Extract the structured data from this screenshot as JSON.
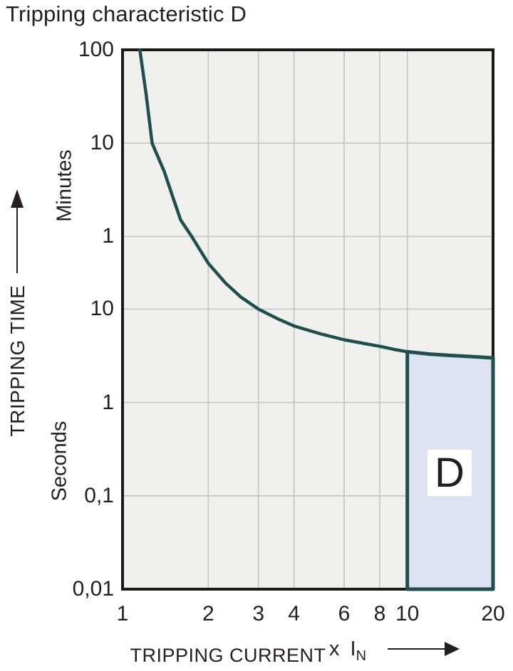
{
  "title": "Tripping characteristic D",
  "labels": {
    "y_axis": "TRIPPING TIME",
    "unit_top": "Minutes",
    "unit_bottom": "Seconds",
    "x_axis": "TRIPPING CURRENT",
    "x_axis_mult": "x",
    "x_axis_symbol": "I",
    "x_axis_symbol_sub": "N",
    "region": "D"
  },
  "colors": {
    "curve": "#1f4e4d",
    "region_fill": "#dde3f2",
    "region_stroke": "#1f4e4d",
    "plot_background": "#f0f0ee",
    "gridline": "#c3c4c6",
    "frame": "#1a1a1a",
    "text": "#231f20"
  },
  "chart_data": {
    "type": "line",
    "title": "Tripping characteristic D",
    "xlabel": "TRIPPING CURRENT (x IN)",
    "ylabel": "TRIPPING TIME",
    "x_scale": "log",
    "y_scale": "log",
    "x_range": [
      1,
      20
    ],
    "y_range_seconds": [
      0.01,
      6000
    ],
    "grid": true,
    "legend": "none",
    "x_ticks": [
      {
        "label": "1",
        "value": 1
      },
      {
        "label": "2",
        "value": 2
      },
      {
        "label": "3",
        "value": 3
      },
      {
        "label": "4",
        "value": 4
      },
      {
        "label": "6",
        "value": 6
      },
      {
        "label": "8",
        "value": 8
      },
      {
        "label": "10",
        "value": 10
      },
      {
        "label": "20",
        "value": 20
      }
    ],
    "y_ticks": [
      {
        "label": "100",
        "unit": "minutes",
        "seconds": 6000
      },
      {
        "label": "10",
        "unit": "minutes",
        "seconds": 600
      },
      {
        "label": "1",
        "unit": "minutes",
        "seconds": 60
      },
      {
        "label": "10",
        "unit": "seconds",
        "seconds": 10
      },
      {
        "label": "1",
        "unit": "seconds",
        "seconds": 1
      },
      {
        "label": "0,1",
        "unit": "seconds",
        "seconds": 0.1
      },
      {
        "label": "0,01",
        "unit": "seconds",
        "seconds": 0.01
      }
    ],
    "series": [
      {
        "name": "Tripping characteristic D (thermal release curve)",
        "points_format": [
          "current_multiple_of_In",
          "tripping_time_seconds"
        ],
        "points": [
          [
            1.15,
            6000
          ],
          [
            1.21,
            2000
          ],
          [
            1.27,
            600
          ],
          [
            1.4,
            300
          ],
          [
            1.5,
            160
          ],
          [
            1.6,
            90
          ],
          [
            1.75,
            60
          ],
          [
            2.0,
            31
          ],
          [
            2.3,
            19
          ],
          [
            2.6,
            13.5
          ],
          [
            3.0,
            10
          ],
          [
            3.5,
            7.9
          ],
          [
            4.0,
            6.6
          ],
          [
            5.0,
            5.4
          ],
          [
            6.0,
            4.7
          ],
          [
            7.0,
            4.3
          ],
          [
            8.0,
            4.0
          ],
          [
            9.0,
            3.7
          ],
          [
            10.0,
            3.5
          ],
          [
            12.0,
            3.3
          ],
          [
            14.0,
            3.2
          ],
          [
            17.0,
            3.1
          ],
          [
            20.0,
            3.0
          ]
        ]
      }
    ],
    "region": {
      "label": "D",
      "x_from": 10,
      "x_to": 20,
      "bottom_seconds": 0.01,
      "top": "curve"
    }
  }
}
